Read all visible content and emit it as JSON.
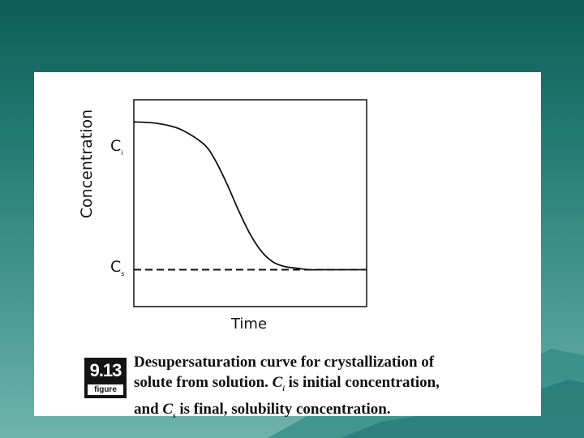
{
  "chart_data": {
    "type": "line",
    "xlabel": "Time",
    "ylabel": "Concentration",
    "y_ticks": {
      "Ci": "C",
      "Ci_sub": "i",
      "Cs": "C",
      "Cs_sub": "s"
    },
    "x": [
      0.0,
      0.1,
      0.2,
      0.3,
      0.35,
      0.4,
      0.45,
      0.5,
      0.55,
      0.6,
      0.65,
      0.7,
      0.75,
      0.8,
      0.85,
      0.9,
      1.0
    ],
    "xlim": [
      0,
      1
    ],
    "ylim": [
      -0.25,
      1.15
    ],
    "series": [
      {
        "values": [
          1.0,
          0.99,
          0.95,
          0.85,
          0.74,
          0.58,
          0.4,
          0.24,
          0.12,
          0.05,
          0.02,
          0.01,
          0.0,
          0.0,
          0.0,
          0.0,
          0.0
        ],
        "style": "solid"
      },
      {
        "values": [
          0.0,
          0.0,
          0.0,
          0.0,
          0.0,
          0.0,
          0.0,
          0.0,
          0.0,
          0.0,
          0.0,
          0.0,
          0.0,
          0.0,
          0.0,
          0.0,
          0.0
        ],
        "style": "dashed"
      }
    ],
    "grid": false
  },
  "figure": {
    "number": "9.13",
    "word": "figure",
    "caption_line1": "Desupersaturation curve for crystallization of",
    "caption_line2a": "solute from solution. ",
    "caption_ci": "C",
    "caption_ci_sub": "i",
    "caption_line2b": " is initial concentration,",
    "caption_line3a": "and ",
    "caption_cs": "C",
    "caption_cs_sub": "s",
    "caption_line3b": " is final, solubility concentration."
  }
}
